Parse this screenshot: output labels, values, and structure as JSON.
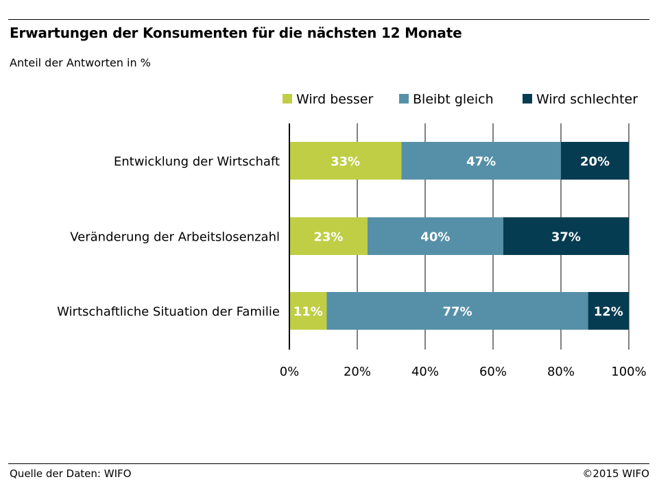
{
  "header": {
    "title": "Erwartungen der Konsumenten für die nächsten 12 Monate",
    "subtitle": "Anteil der Antworten in %"
  },
  "footer": {
    "source": "Quelle der Daten: WIFO",
    "copyright": "©2015 WIFO"
  },
  "chart_data": {
    "type": "bar",
    "orientation": "horizontal",
    "stacked": true,
    "title": "Erwartungen der Konsumenten für die nächsten 12 Monate",
    "subtitle": "Anteil der Antworten in %",
    "xlabel": "",
    "ylabel": "",
    "xlim": [
      0,
      100
    ],
    "x_ticks": [
      0,
      20,
      40,
      60,
      80,
      100
    ],
    "x_tick_labels": [
      "0%",
      "20%",
      "40%",
      "60%",
      "80%",
      "100%"
    ],
    "grid": true,
    "legend_position": "top-right",
    "categories": [
      "Entwicklung der Wirtschaft",
      "Veränderung der Arbeitslosenzahl",
      "Wirtschaftliche Situation der Familie"
    ],
    "series": [
      {
        "name": "Wird besser",
        "color": "#bfce45",
        "values": [
          33,
          23,
          11
        ],
        "labels": [
          "33%",
          "23%",
          "11%"
        ]
      },
      {
        "name": "Bleibt gleich",
        "color": "#5690a8",
        "values": [
          47,
          40,
          77
        ],
        "labels": [
          "47%",
          "40%",
          "77%"
        ]
      },
      {
        "name": "Wird schlechter",
        "color": "#063c52",
        "values": [
          20,
          37,
          12
        ],
        "labels": [
          "20%",
          "37%",
          "12%"
        ]
      }
    ],
    "source": "Quelle der Daten: WIFO"
  }
}
